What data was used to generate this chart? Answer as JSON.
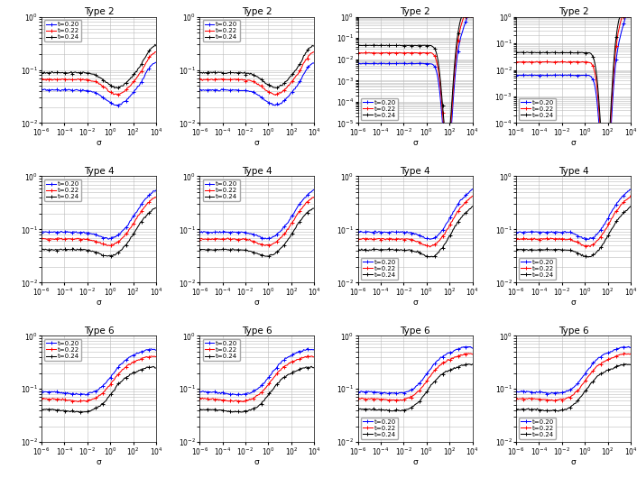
{
  "legend_labels": [
    "t=0.20",
    "t=0.22",
    "t=0.24"
  ],
  "colors": [
    "blue",
    "red",
    "black"
  ],
  "sigma_log_min": -6,
  "sigma_log_max": 4,
  "n_points": 120,
  "marker": "+",
  "markersize": 3,
  "linewidth": 0.75,
  "grid_color": "#bbbbbb",
  "xlabel": "σ",
  "row_titles": [
    "Type 2",
    "Type 4",
    "Type 6"
  ],
  "panel_configs": {
    "r0c0": {
      "ylim_lo": -2.0,
      "ylim_hi": 0.0,
      "base": [
        -1.38,
        -1.18,
        -1.05
      ],
      "type": "t2_col01"
    },
    "r0c1": {
      "ylim_lo": -2.0,
      "ylim_hi": 0.0,
      "base": [
        -1.38,
        -1.18,
        -1.05
      ],
      "type": "t2_col01"
    },
    "r0c2": {
      "ylim_lo": -5.0,
      "ylim_hi": 0.0,
      "base": [
        -2.2,
        -1.7,
        -1.35
      ],
      "type": "t2_col23"
    },
    "r0c3": {
      "ylim_lo": -4.0,
      "ylim_hi": 0.0,
      "base": [
        -2.2,
        -1.7,
        -1.35
      ],
      "type": "t2_col23"
    },
    "r1c0": {
      "ylim_lo": -2.0,
      "ylim_hi": 0.0,
      "base": [
        -1.38,
        -1.18,
        -1.05
      ],
      "type": "t4_col01"
    },
    "r1c1": {
      "ylim_lo": -2.0,
      "ylim_hi": 0.0,
      "base": [
        -1.38,
        -1.18,
        -1.05
      ],
      "type": "t4_col01"
    },
    "r1c2": {
      "ylim_lo": -2.0,
      "ylim_hi": 0.0,
      "base": [
        -1.38,
        -1.18,
        -1.05
      ],
      "type": "t4_col23"
    },
    "r1c3": {
      "ylim_lo": -2.0,
      "ylim_hi": 0.0,
      "base": [
        -1.38,
        -1.18,
        -1.05
      ],
      "type": "t4_col23"
    },
    "r2c0": {
      "ylim_lo": -2.0,
      "ylim_hi": 0.0,
      "base": [
        -1.38,
        -1.18,
        -1.05
      ],
      "type": "t6_col01"
    },
    "r2c1": {
      "ylim_lo": -2.0,
      "ylim_hi": 0.0,
      "base": [
        -1.38,
        -1.18,
        -1.05
      ],
      "type": "t6_col01"
    },
    "r2c2": {
      "ylim_lo": -2.0,
      "ylim_hi": 0.0,
      "base": [
        -1.38,
        -1.18,
        -1.05
      ],
      "type": "t6_col23"
    },
    "r2c3": {
      "ylim_lo": -2.0,
      "ylim_hi": 0.0,
      "base": [
        -1.38,
        -1.18,
        -1.05
      ],
      "type": "t6_col23"
    }
  }
}
